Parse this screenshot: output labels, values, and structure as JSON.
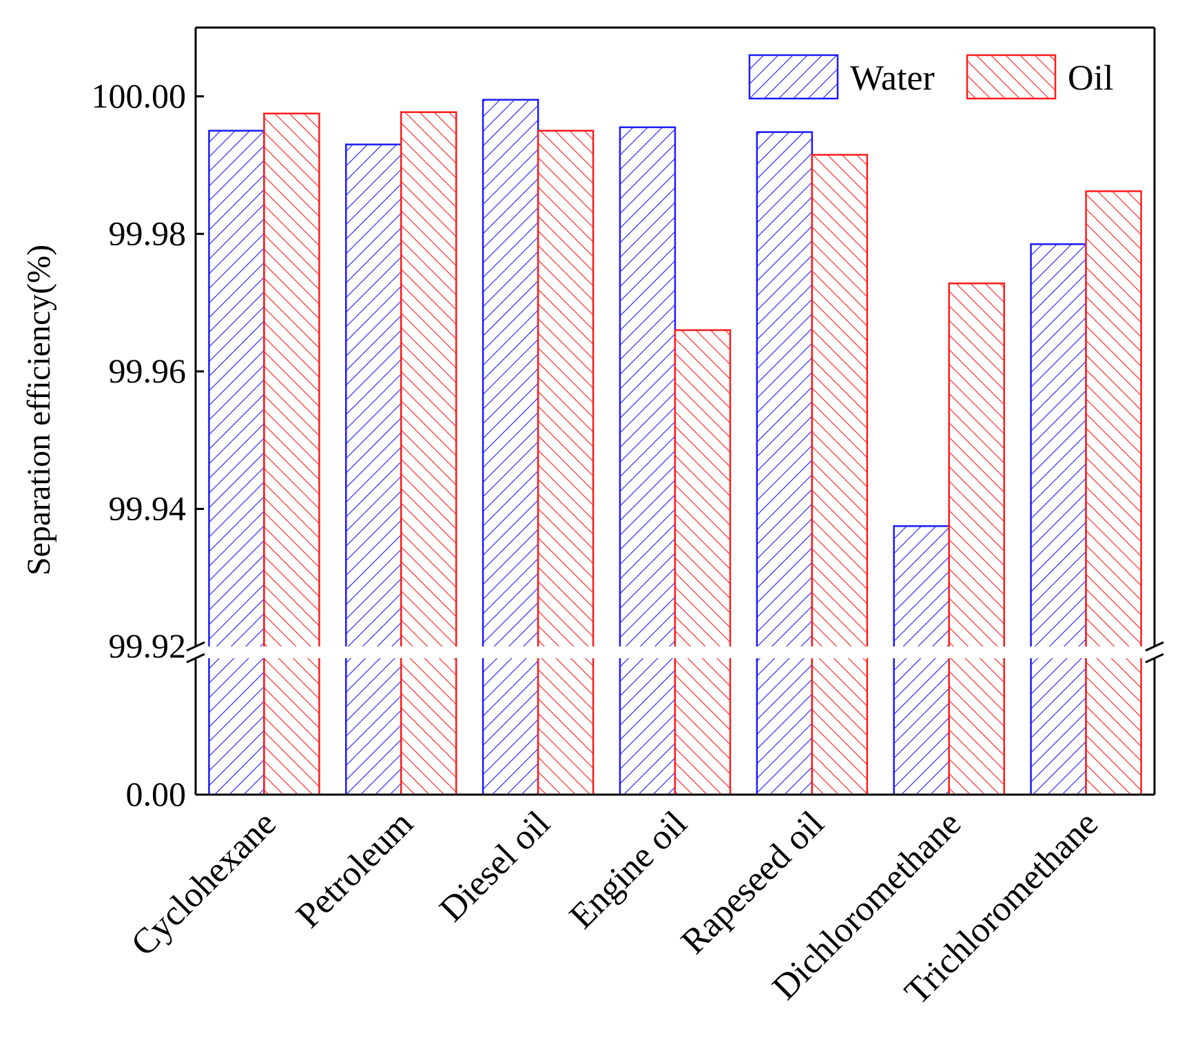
{
  "chart_data": {
    "type": "bar",
    "title": "",
    "xlabel": "",
    "ylabel": "Separation efficiency(%)",
    "categories": [
      "Cyclohexane",
      "Petroleum",
      "Diesel oil",
      "Engine oil",
      "Rapeseed oil",
      "Dichloromethane",
      "Trichloromethane"
    ],
    "series": [
      {
        "name": "Water",
        "values": [
          99.995,
          99.993,
          99.9995,
          99.9955,
          99.9948,
          99.9375,
          99.9785
        ],
        "color": "#1a1aff",
        "pattern": "forward-hatch"
      },
      {
        "name": "Oil",
        "values": [
          99.9975,
          99.9977,
          99.995,
          99.966,
          99.9915,
          99.9728,
          99.9862
        ],
        "color": "#ff1a1a",
        "pattern": "back-hatch"
      }
    ],
    "y_axis": {
      "break": true,
      "lower_segment": [
        0,
        0.01
      ],
      "upper_segment": [
        99.92,
        100.01
      ],
      "ticks": [
        {
          "value": 0,
          "label": "0.00"
        },
        {
          "value": 99.92,
          "label": "99.92"
        },
        {
          "value": 99.94,
          "label": "99.94"
        },
        {
          "value": 99.96,
          "label": "99.96"
        },
        {
          "value": 99.98,
          "label": "99.98"
        },
        {
          "value": 100.0,
          "label": "100.00"
        }
      ]
    },
    "legend": {
      "position": "top-right",
      "entries": [
        "Water",
        "Oil"
      ]
    },
    "grid": false
  }
}
